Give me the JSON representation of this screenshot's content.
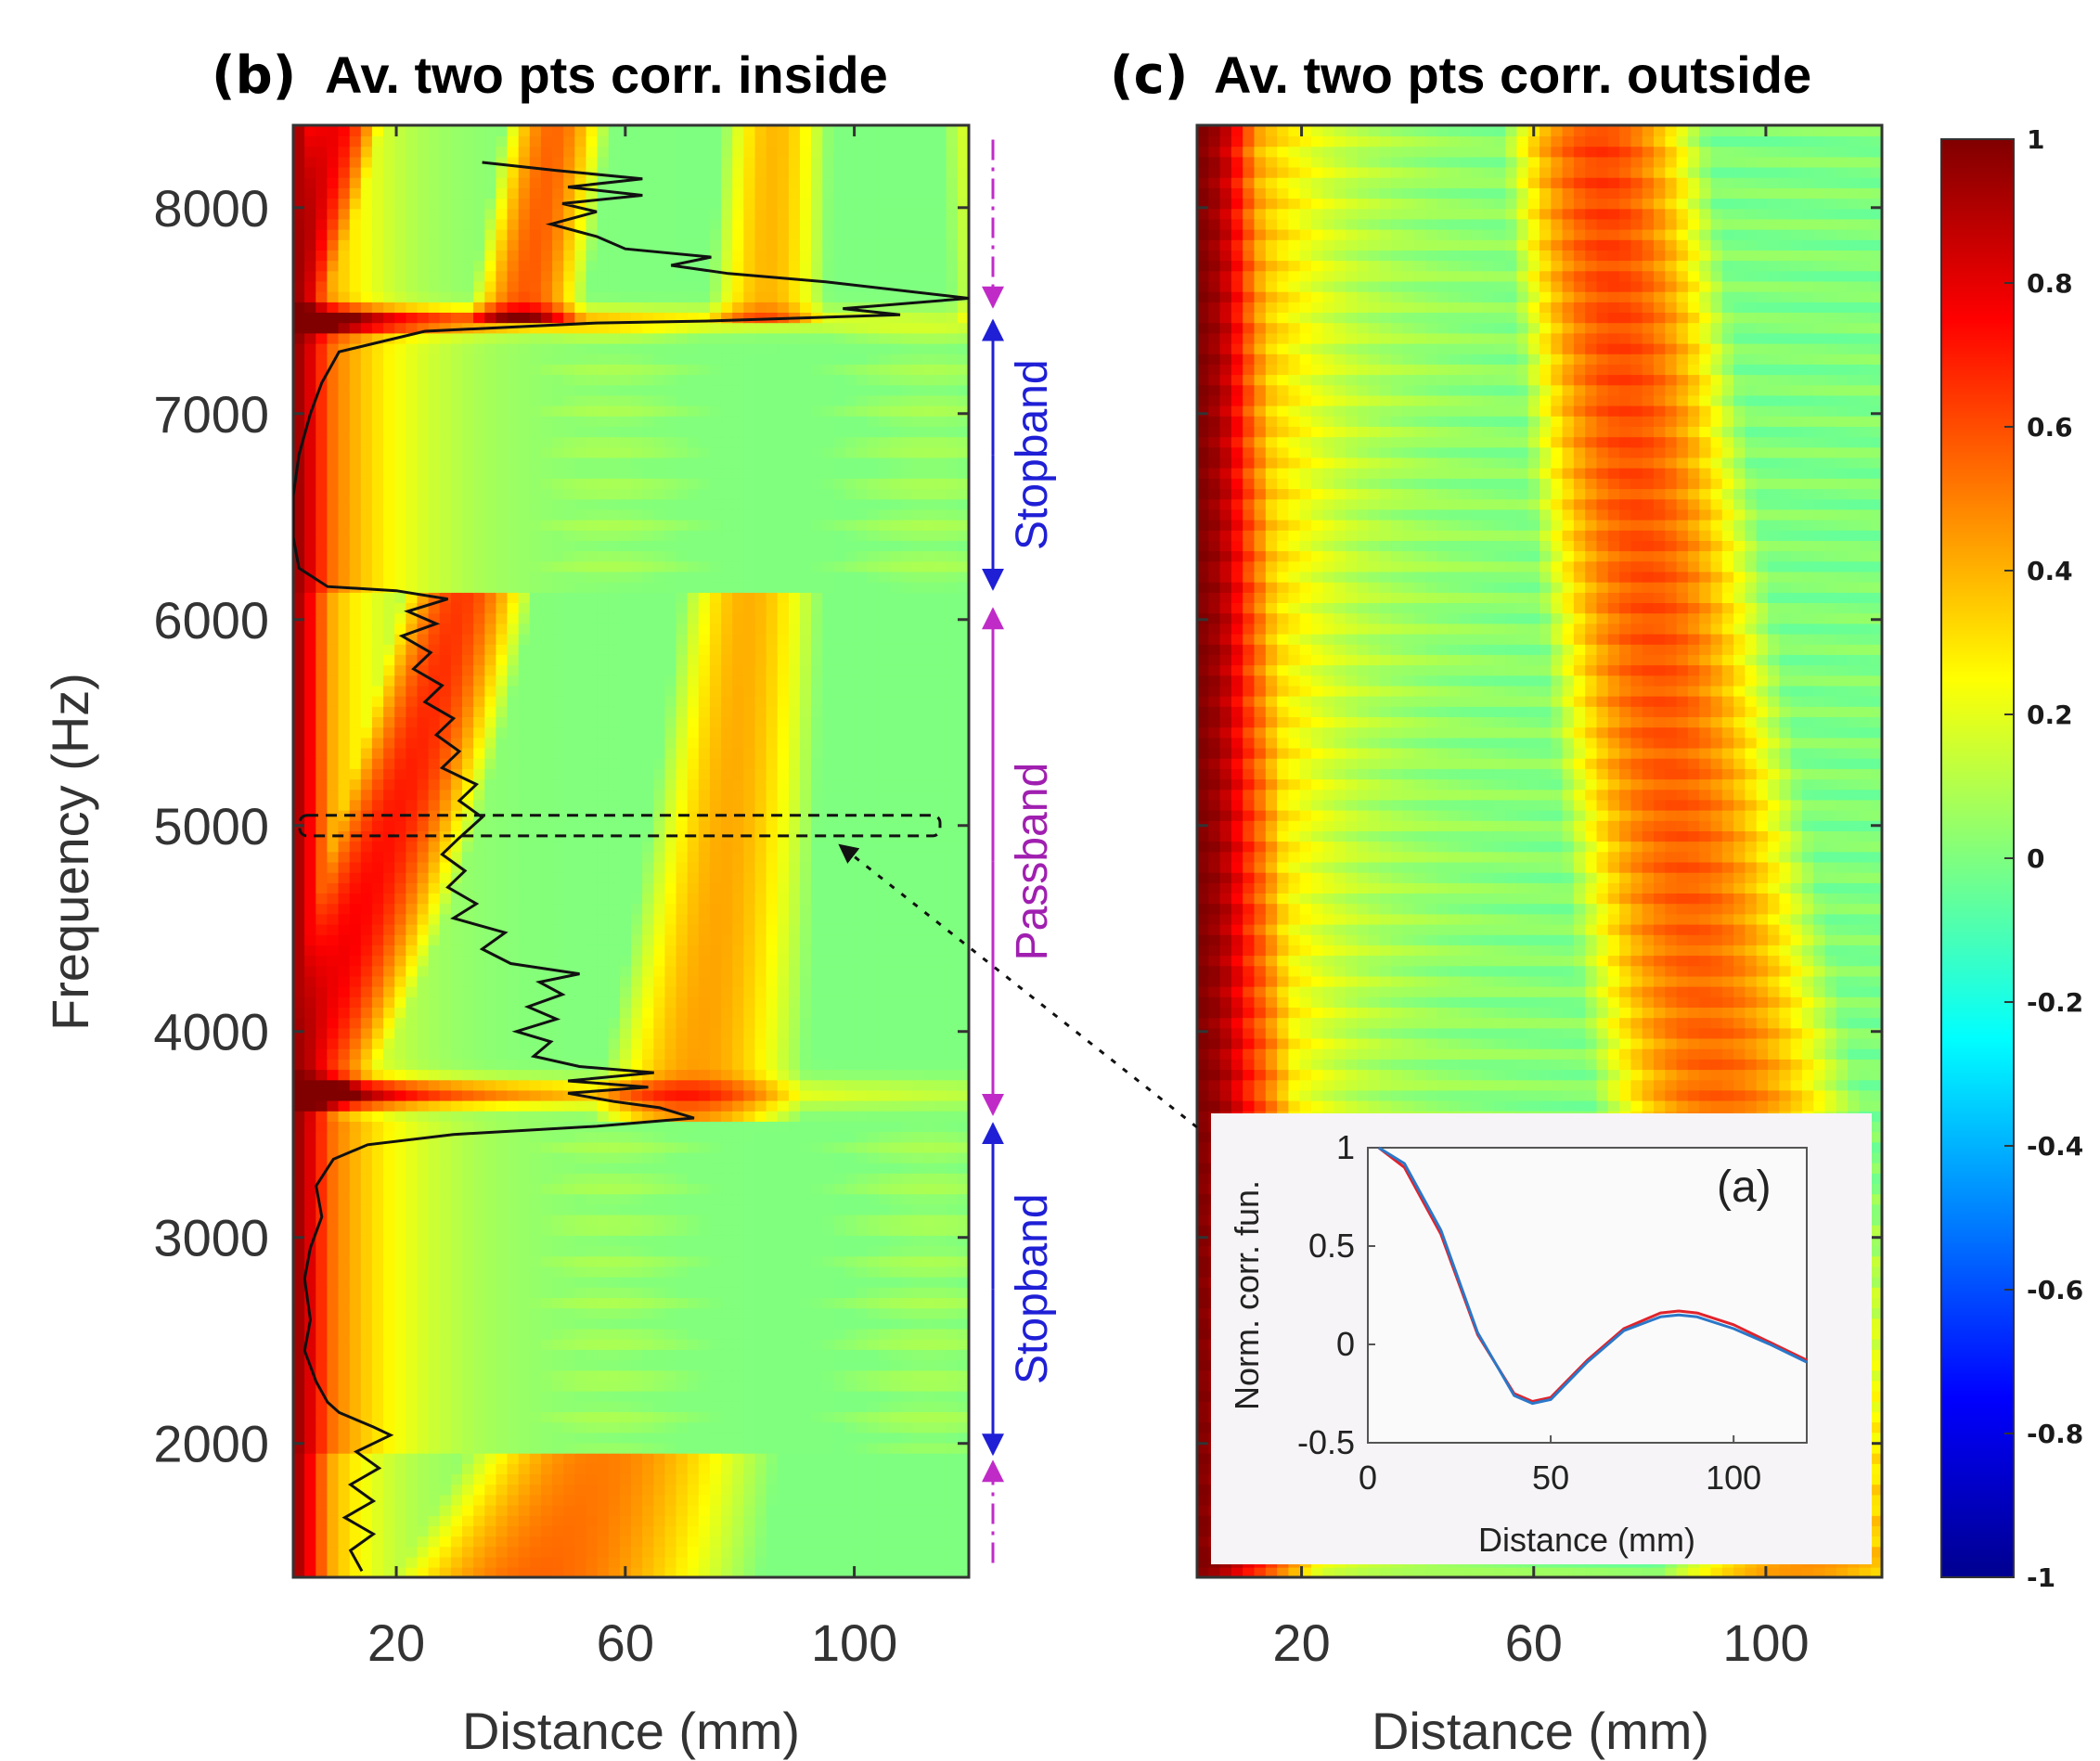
{
  "chart_data": [
    {
      "panel": "(b)",
      "title": "Av. two pts corr. inside",
      "type": "heatmap",
      "xlabel": "Distance (mm)",
      "ylabel": "Frequency (Hz)",
      "xticks": [
        20,
        60,
        100
      ],
      "yticks": [
        2000,
        3000,
        4000,
        5000,
        6000,
        7000,
        8000
      ],
      "xlim": [
        2,
        120
      ],
      "ylim": [
        1350,
        8400
      ],
      "band_annotations": [
        {
          "label": "Stopband",
          "from": 6150,
          "to": 7450,
          "color": "#1f1fd6"
        },
        {
          "label": "Passband",
          "from": 3600,
          "to": 6050,
          "color": "#a01fb0"
        },
        {
          "label": "Stopband",
          "from": 1950,
          "to": 3550,
          "color": "#1f1fd6"
        }
      ],
      "highlight_band": {
        "from": 4950,
        "to": 5050,
        "style": "dashed"
      },
      "overlay_curve": {
        "color": "#111111",
        "points": [
          [
            14,
            1380
          ],
          [
            12,
            1480
          ],
          [
            16,
            1560
          ],
          [
            11,
            1640
          ],
          [
            16,
            1720
          ],
          [
            12,
            1800
          ],
          [
            17,
            1880
          ],
          [
            13,
            1960
          ],
          [
            19,
            2040
          ],
          [
            16,
            2080
          ],
          [
            10,
            2150
          ],
          [
            8,
            2200
          ],
          [
            6,
            2300
          ],
          [
            4,
            2450
          ],
          [
            5,
            2600
          ],
          [
            4,
            2800
          ],
          [
            5,
            2950
          ],
          [
            7,
            3100
          ],
          [
            6,
            3250
          ],
          [
            9,
            3380
          ],
          [
            15,
            3450
          ],
          [
            30,
            3500
          ],
          [
            55,
            3540
          ],
          [
            72,
            3580
          ],
          [
            66,
            3630
          ],
          [
            58,
            3660
          ],
          [
            50,
            3700
          ],
          [
            64,
            3730
          ],
          [
            50,
            3760
          ],
          [
            65,
            3800
          ],
          [
            52,
            3830
          ],
          [
            44,
            3880
          ],
          [
            47,
            3950
          ],
          [
            41,
            4000
          ],
          [
            48,
            4060
          ],
          [
            43,
            4120
          ],
          [
            49,
            4180
          ],
          [
            45,
            4240
          ],
          [
            52,
            4280
          ],
          [
            40,
            4330
          ],
          [
            35,
            4400
          ],
          [
            39,
            4480
          ],
          [
            30,
            4550
          ],
          [
            34,
            4620
          ],
          [
            29,
            4700
          ],
          [
            32,
            4780
          ],
          [
            28,
            4860
          ],
          [
            31,
            4940
          ],
          [
            35,
            5040
          ],
          [
            31,
            5120
          ],
          [
            34,
            5200
          ],
          [
            28,
            5280
          ],
          [
            31,
            5360
          ],
          [
            27,
            5440
          ],
          [
            30,
            5520
          ],
          [
            25,
            5600
          ],
          [
            28,
            5680
          ],
          [
            23,
            5760
          ],
          [
            26,
            5840
          ],
          [
            21,
            5920
          ],
          [
            27,
            5980
          ],
          [
            22,
            6040
          ],
          [
            29,
            6100
          ],
          [
            20,
            6140
          ],
          [
            8,
            6160
          ],
          [
            3,
            6250
          ],
          [
            2,
            6400
          ],
          [
            2,
            6600
          ],
          [
            3,
            6800
          ],
          [
            5,
            7000
          ],
          [
            7,
            7150
          ],
          [
            10,
            7300
          ],
          [
            25,
            7400
          ],
          [
            55,
            7440
          ],
          [
            75,
            7450
          ],
          [
            108,
            7480
          ],
          [
            98,
            7510
          ],
          [
            120,
            7560
          ],
          [
            95,
            7640
          ],
          [
            78,
            7680
          ],
          [
            68,
            7720
          ],
          [
            75,
            7760
          ],
          [
            60,
            7800
          ],
          [
            55,
            7860
          ],
          [
            47,
            7920
          ],
          [
            55,
            7980
          ],
          [
            49,
            8020
          ],
          [
            63,
            8060
          ],
          [
            50,
            8100
          ],
          [
            63,
            8140
          ],
          [
            48,
            8180
          ],
          [
            35,
            8220
          ]
        ]
      }
    },
    {
      "panel": "(c)",
      "title": "Av. two pts corr. outside",
      "type": "heatmap",
      "xlabel": "Distance (mm)",
      "xticks": [
        20,
        60,
        100
      ],
      "xlim": [
        2,
        120
      ],
      "ylim": [
        1350,
        8400
      ]
    },
    {
      "panel": "(a)",
      "type": "line",
      "ylabel": "Norm. corr. fun.",
      "xlabel": "Distance (mm)",
      "xticks": [
        0,
        50,
        100
      ],
      "yticks": [
        -0.5,
        0,
        0.5,
        1
      ],
      "xlim": [
        0,
        120
      ],
      "ylim": [
        -0.5,
        1
      ],
      "series": [
        {
          "color": "#e0232b",
          "x": [
            3,
            10,
            20,
            30,
            40,
            45,
            50,
            60,
            70,
            80,
            85,
            90,
            100,
            110,
            120
          ],
          "y": [
            1,
            0.9,
            0.56,
            0.05,
            -0.25,
            -0.29,
            -0.27,
            -0.08,
            0.08,
            0.16,
            0.17,
            0.16,
            0.1,
            0.01,
            -0.08
          ]
        },
        {
          "color": "#2a78c8",
          "x": [
            3,
            10,
            20,
            30,
            40,
            45,
            50,
            60,
            70,
            80,
            85,
            90,
            100,
            110,
            120
          ],
          "y": [
            1,
            0.92,
            0.58,
            0.06,
            -0.26,
            -0.3,
            -0.28,
            -0.09,
            0.07,
            0.14,
            0.15,
            0.14,
            0.08,
            0.0,
            -0.09
          ]
        }
      ]
    }
  ],
  "colorbar": {
    "ticks": [
      "1",
      "0.8",
      "0.6",
      "0.4",
      "0.2",
      "0",
      "-0.2",
      "-0.4",
      "-0.6",
      "-0.8",
      "-1"
    ],
    "min": -1,
    "max": 1,
    "colormap": "jet"
  },
  "labels": {
    "panel_b": "(b)",
    "panel_c": "(c)",
    "panel_a": "(a)",
    "title_b": "Av. two pts corr. inside",
    "title_c": "Av. two pts corr. outside"
  }
}
